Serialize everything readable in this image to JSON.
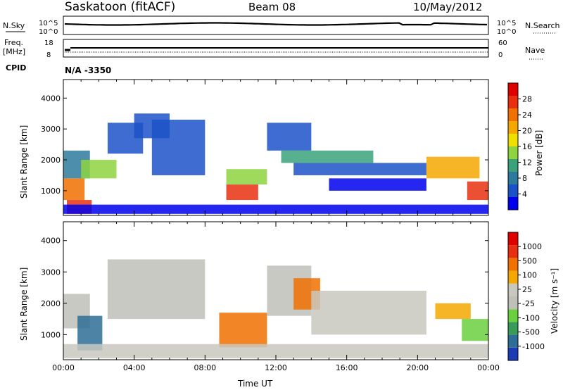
{
  "header": {
    "station": "Saskatoon (fitACF)",
    "beam": "Beam 08",
    "date": "10/May/2012"
  },
  "noise_panel": {
    "left_label": "N.Sky",
    "right_label": "N.Search",
    "left_ticks": [
      "10^5",
      "10^0"
    ],
    "right_ticks": [
      "10^5",
      "10^0"
    ]
  },
  "freq_panel": {
    "left_label_1": "Freq.",
    "left_label_2": "[MHz]",
    "right_label": "Nave",
    "left_ticks": [
      "18",
      "8"
    ],
    "right_ticks": [
      "60",
      "0"
    ]
  },
  "cpid": {
    "label": "CPID",
    "value": "N/A -3350"
  },
  "chart_data": [
    {
      "type": "heatmap",
      "name": "power",
      "ylabel": "Slant Range [km]",
      "ylim": [
        200,
        4600
      ],
      "yticks": [
        "4000",
        "3000",
        "2000",
        "1000"
      ],
      "ytick_values": [
        4000,
        3000,
        2000,
        1000
      ],
      "xlim_hours": [
        0,
        24
      ],
      "colorbar": {
        "label": "Power [dB]",
        "ticks": [
          "28",
          "24",
          "20",
          "16",
          "12",
          "8",
          "4"
        ],
        "colors": [
          "#0000ee",
          "#1c52c8",
          "#2e7a9c",
          "#3aa27a",
          "#8ed440",
          "#f0e000",
          "#f5a800",
          "#f07000",
          "#e83010",
          "#e00000"
        ]
      },
      "bands": [
        {
          "t0": 0.0,
          "t1": 1.5,
          "r0": 1400,
          "r1": 2300,
          "color": "#2e7a9c"
        },
        {
          "t0": 0.0,
          "t1": 1.2,
          "r0": 700,
          "r1": 1400,
          "color": "#f07000"
        },
        {
          "t0": 0.2,
          "t1": 1.6,
          "r0": 250,
          "r1": 700,
          "color": "#e83010"
        },
        {
          "t0": 1.0,
          "t1": 3.0,
          "r0": 1400,
          "r1": 2000,
          "color": "#8ed440"
        },
        {
          "t0": 2.5,
          "t1": 4.5,
          "r0": 2200,
          "r1": 3200,
          "color": "#1c52c8"
        },
        {
          "t0": 4.0,
          "t1": 6.0,
          "r0": 2700,
          "r1": 3500,
          "color": "#1c52c8"
        },
        {
          "t0": 5.0,
          "t1": 8.0,
          "r0": 1500,
          "r1": 3300,
          "color": "#1c52c8"
        },
        {
          "t0": 9.2,
          "t1": 11.5,
          "r0": 1200,
          "r1": 1700,
          "color": "#8ed440"
        },
        {
          "t0": 9.2,
          "t1": 11.0,
          "r0": 700,
          "r1": 1200,
          "color": "#e83010"
        },
        {
          "t0": 11.5,
          "t1": 14.0,
          "r0": 2300,
          "r1": 3200,
          "color": "#1c52c8"
        },
        {
          "t0": 12.3,
          "t1": 17.5,
          "r0": 1900,
          "r1": 2300,
          "color": "#3aa27a"
        },
        {
          "t0": 13.0,
          "t1": 20.5,
          "r0": 1500,
          "r1": 1900,
          "color": "#1c52c8"
        },
        {
          "t0": 15.0,
          "t1": 20.5,
          "r0": 1000,
          "r1": 1400,
          "color": "#0000ee"
        },
        {
          "t0": 20.5,
          "t1": 23.5,
          "r0": 1400,
          "r1": 2100,
          "color": "#f5a800"
        },
        {
          "t0": 22.8,
          "t1": 24.0,
          "r0": 700,
          "r1": 1300,
          "color": "#e83010"
        },
        {
          "t0": 0.0,
          "t1": 24.0,
          "r0": 250,
          "r1": 550,
          "color": "#0000ee"
        }
      ]
    },
    {
      "type": "heatmap",
      "name": "velocity",
      "ylabel": "Slant Range [km]",
      "ylim": [
        200,
        4600
      ],
      "yticks": [
        "4000",
        "3000",
        "2000",
        "1000"
      ],
      "ytick_values": [
        4000,
        3000,
        2000,
        1000
      ],
      "xlim_hours": [
        0,
        24
      ],
      "xlabel": "Time UT",
      "xticks": [
        "00:00",
        "04:00",
        "08:00",
        "12:00",
        "16:00",
        "20:00",
        "00:00"
      ],
      "colorbar": {
        "label": "Velocity [m s⁻¹]",
        "ticks": [
          "1000",
          "500",
          "100",
          "25",
          "-25",
          "-100",
          "-500",
          "-1000"
        ],
        "colors": [
          "#1c3cb4",
          "#2e6e96",
          "#3a9a5a",
          "#6ad040",
          "#c0c0b8",
          "#c8c8c0",
          "#f5a800",
          "#f07000",
          "#e83010",
          "#e00000"
        ]
      },
      "bands": [
        {
          "t0": 0.0,
          "t1": 1.5,
          "r0": 1200,
          "r1": 2300,
          "color": "#c0c0b8"
        },
        {
          "t0": 0.8,
          "t1": 2.2,
          "r0": 500,
          "r1": 1600,
          "color": "#2e6e96"
        },
        {
          "t0": 2.5,
          "t1": 8.0,
          "r0": 1500,
          "r1": 3400,
          "color": "#c0c0b8"
        },
        {
          "t0": 8.8,
          "t1": 11.5,
          "r0": 600,
          "r1": 1700,
          "color": "#f07000"
        },
        {
          "t0": 11.5,
          "t1": 14.0,
          "r0": 1600,
          "r1": 3200,
          "color": "#c0c0b8"
        },
        {
          "t0": 13.0,
          "t1": 14.5,
          "r0": 1800,
          "r1": 2800,
          "color": "#f07000"
        },
        {
          "t0": 14.0,
          "t1": 20.5,
          "r0": 1000,
          "r1": 2400,
          "color": "#c8c8c0"
        },
        {
          "t0": 21.0,
          "t1": 23.0,
          "r0": 1500,
          "r1": 2000,
          "color": "#f5a800"
        },
        {
          "t0": 22.5,
          "t1": 24.0,
          "r0": 800,
          "r1": 1500,
          "color": "#6ad040"
        },
        {
          "t0": 0.0,
          "t1": 24.0,
          "r0": 250,
          "r1": 700,
          "color": "#c8c8c0"
        }
      ]
    }
  ]
}
